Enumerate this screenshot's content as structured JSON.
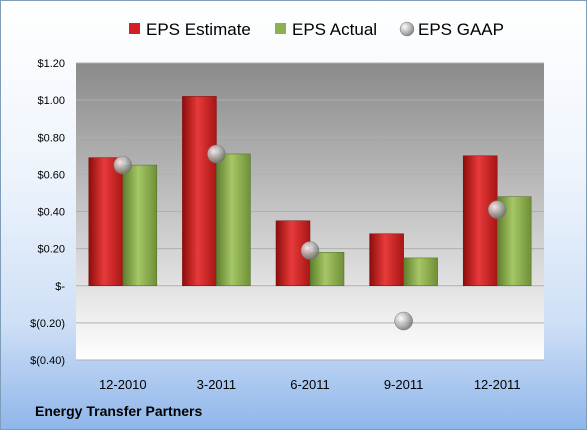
{
  "company": "Energy Transfer Partners",
  "chart_data": {
    "type": "bar",
    "categories": [
      "12-2010",
      "3-2011",
      "6-2011",
      "9-2011",
      "12-2011"
    ],
    "series": [
      {
        "name": "EPS Estimate",
        "type": "bar",
        "color": "#d42020",
        "values": [
          0.69,
          1.02,
          0.35,
          0.28,
          0.7
        ]
      },
      {
        "name": "EPS Actual",
        "type": "bar",
        "color": "#8fb050",
        "values": [
          0.65,
          0.71,
          0.18,
          0.15,
          0.48
        ]
      },
      {
        "name": "EPS GAAP",
        "type": "scatter",
        "color": "#a8a8a8",
        "values": [
          0.65,
          0.71,
          0.19,
          -0.19,
          0.41
        ]
      }
    ],
    "yticks": [
      1.2,
      1.0,
      0.8,
      0.6,
      0.4,
      0.2,
      0,
      -0.2,
      -0.4
    ],
    "ytick_labels": [
      "$1.20",
      "$1.00",
      "$0.80",
      "$0.60",
      "$0.40",
      "$0.20",
      "$-",
      "$(0.20)",
      "$(0.40)"
    ],
    "ylim": [
      -0.4,
      1.2
    ],
    "grid": true,
    "legend_position": "top"
  }
}
